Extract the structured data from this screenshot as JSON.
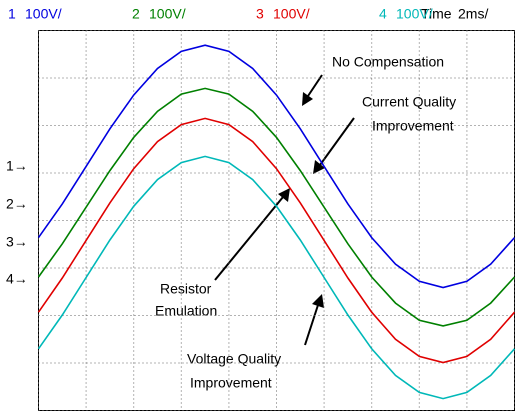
{
  "chart_data": {
    "type": "line",
    "time_label": "Time",
    "time_scale": "2ms/",
    "x": [
      0,
      0.5,
      1,
      1.5,
      2,
      2.5,
      3,
      3.5,
      4,
      4.5,
      5,
      5.5,
      6,
      6.5,
      7,
      7.5,
      8,
      8.5,
      9,
      9.5,
      10
    ],
    "xlim": [
      0,
      10
    ],
    "xticks": [
      0,
      1,
      2,
      3,
      4,
      5,
      6,
      7,
      8,
      9,
      10
    ],
    "ylim": [
      0,
      8
    ],
    "yticks": [
      0,
      1,
      2,
      3,
      4,
      5,
      6,
      7,
      8
    ],
    "grid": true,
    "series": [
      {
        "name": "1",
        "scale": "100V/",
        "marker": "1→",
        "color": "#0000e0",
        "values": [
          3.64,
          4.35,
          5.14,
          5.93,
          6.64,
          7.2,
          7.56,
          7.69,
          7.56,
          7.2,
          6.64,
          5.93,
          5.14,
          4.35,
          3.64,
          3.08,
          2.72,
          2.59,
          2.72,
          3.08,
          3.64
        ]
      },
      {
        "name": "2",
        "scale": "100V/",
        "marker": "2→",
        "color": "#008000",
        "values": [
          2.81,
          3.51,
          4.28,
          5.05,
          5.75,
          6.3,
          6.66,
          6.78,
          6.66,
          6.3,
          5.75,
          5.05,
          4.28,
          3.51,
          2.81,
          2.26,
          1.9,
          1.78,
          1.9,
          2.26,
          2.81
        ]
      },
      {
        "name": "3",
        "scale": "100V/",
        "marker": "3→",
        "color": "#e00000",
        "values": [
          2.07,
          2.79,
          3.58,
          4.37,
          5.09,
          5.66,
          6.02,
          6.15,
          6.02,
          5.66,
          5.09,
          4.37,
          3.58,
          2.79,
          2.07,
          1.5,
          1.14,
          1.01,
          1.14,
          1.5,
          2.07
        ]
      },
      {
        "name": "4",
        "scale": "100V/",
        "marker": "4→",
        "color": "#00b8b8",
        "values": [
          1.3,
          2.01,
          2.8,
          3.59,
          4.3,
          4.86,
          5.22,
          5.35,
          5.22,
          4.86,
          4.3,
          3.59,
          2.8,
          2.01,
          1.3,
          0.74,
          0.38,
          0.25,
          0.38,
          0.74,
          1.3
        ]
      }
    ],
    "annotations": [
      "No Compensation",
      "Current Quality",
      "Improvement",
      "Resistor",
      "Emulation",
      "Voltage Quality",
      "Improvement"
    ]
  }
}
